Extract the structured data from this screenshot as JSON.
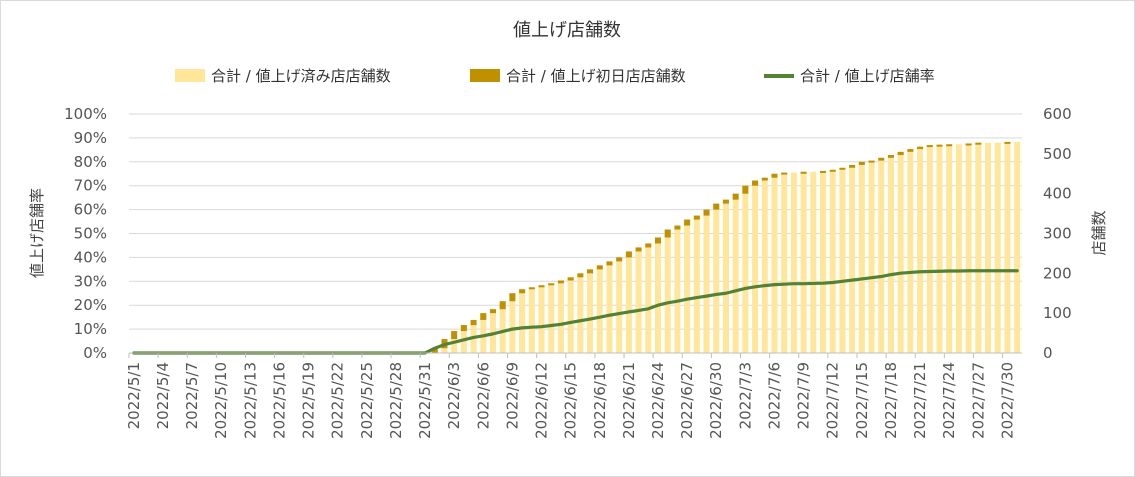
{
  "chart_data": {
    "type": "bar",
    "title": "値上げ店舗数",
    "ylabel_left": "値上げ店舗率",
    "ylabel_right": "店舗数",
    "y_left": {
      "lim": [
        0,
        1
      ],
      "ticks": [
        "0%",
        "10%",
        "20%",
        "30%",
        "40%",
        "50%",
        "60%",
        "70%",
        "80%",
        "90%",
        "100%"
      ]
    },
    "y_right": {
      "lim": [
        0,
        600
      ],
      "ticks": [
        "0",
        "100",
        "200",
        "300",
        "400",
        "500",
        "600"
      ]
    },
    "x_tick_labels": [
      "2022/5/1",
      "2022/5/4",
      "2022/5/7",
      "2022/5/10",
      "2022/5/13",
      "2022/5/16",
      "2022/5/19",
      "2022/5/22",
      "2022/5/25",
      "2022/5/28",
      "2022/5/31",
      "2022/6/3",
      "2022/6/6",
      "2022/6/9",
      "2022/6/12",
      "2022/6/15",
      "2022/6/18",
      "2022/6/21",
      "2022/6/24",
      "2022/6/27",
      "2022/6/30",
      "2022/7/3",
      "2022/7/6",
      "2022/7/9",
      "2022/7/12",
      "2022/7/15",
      "2022/7/18",
      "2022/7/21",
      "2022/7/24",
      "2022/7/27",
      "2022/7/30"
    ],
    "legend_position": "top",
    "grid": true,
    "colors": {
      "cumulative": "#FFE699",
      "first_day": "#BF9000",
      "rate": "#548235"
    },
    "series": [
      {
        "name": "合計 / 値上げ済み店店舗数",
        "axis": "right",
        "style": "bar",
        "points": [
          [
            "2022/5/31",
            0
          ],
          [
            "2022/6/1",
            12
          ],
          [
            "2022/6/2",
            35
          ],
          [
            "2022/6/3",
            55
          ],
          [
            "2022/6/4",
            70
          ],
          [
            "2022/6/5",
            83
          ],
          [
            "2022/6/6",
            100
          ],
          [
            "2022/6/7",
            110
          ],
          [
            "2022/6/8",
            130
          ],
          [
            "2022/6/9",
            150
          ],
          [
            "2022/6/10",
            160
          ],
          [
            "2022/6/11",
            165
          ],
          [
            "2022/6/12",
            170
          ],
          [
            "2022/6/13",
            175
          ],
          [
            "2022/6/14",
            182
          ],
          [
            "2022/6/15",
            190
          ],
          [
            "2022/6/16",
            200
          ],
          [
            "2022/6/17",
            210
          ],
          [
            "2022/6/18",
            220
          ],
          [
            "2022/6/19",
            230
          ],
          [
            "2022/6/20",
            240
          ],
          [
            "2022/6/21",
            255
          ],
          [
            "2022/6/22",
            265
          ],
          [
            "2022/6/23",
            275
          ],
          [
            "2022/6/24",
            290
          ],
          [
            "2022/6/25",
            310
          ],
          [
            "2022/6/26",
            320
          ],
          [
            "2022/6/27",
            335
          ],
          [
            "2022/6/28",
            345
          ],
          [
            "2022/6/29",
            360
          ],
          [
            "2022/6/30",
            375
          ],
          [
            "2022/7/1",
            385
          ],
          [
            "2022/7/2",
            400
          ],
          [
            "2022/7/3",
            420
          ],
          [
            "2022/7/4",
            433
          ],
          [
            "2022/7/5",
            440
          ],
          [
            "2022/7/6",
            450
          ],
          [
            "2022/7/7",
            453
          ],
          [
            "2022/7/8",
            453
          ],
          [
            "2022/7/9",
            455
          ],
          [
            "2022/7/10",
            455
          ],
          [
            "2022/7/11",
            457
          ],
          [
            "2022/7/12",
            460
          ],
          [
            "2022/7/13",
            465
          ],
          [
            "2022/7/14",
            472
          ],
          [
            "2022/7/15",
            480
          ],
          [
            "2022/7/16",
            483
          ],
          [
            "2022/7/17",
            490
          ],
          [
            "2022/7/18",
            497
          ],
          [
            "2022/7/19",
            505
          ],
          [
            "2022/7/20",
            512
          ],
          [
            "2022/7/21",
            518
          ],
          [
            "2022/7/22",
            522
          ],
          [
            "2022/7/23",
            523
          ],
          [
            "2022/7/24",
            524
          ],
          [
            "2022/7/25",
            524
          ],
          [
            "2022/7/26",
            526
          ],
          [
            "2022/7/27",
            528
          ],
          [
            "2022/7/28",
            528
          ],
          [
            "2022/7/29",
            528
          ],
          [
            "2022/7/30",
            530
          ],
          [
            "2022/7/31",
            530
          ]
        ]
      },
      {
        "name": "合計 / 値上げ初日店店舗数",
        "axis": "right",
        "style": "stacked-increment",
        "points": [
          [
            "2022/5/31",
            0
          ],
          [
            "2022/6/1",
            12
          ],
          [
            "2022/6/2",
            23
          ],
          [
            "2022/6/3",
            20
          ],
          [
            "2022/6/4",
            15
          ],
          [
            "2022/6/5",
            13
          ],
          [
            "2022/6/6",
            17
          ],
          [
            "2022/6/7",
            10
          ],
          [
            "2022/6/8",
            20
          ],
          [
            "2022/6/9",
            20
          ],
          [
            "2022/6/10",
            10
          ],
          [
            "2022/6/11",
            5
          ],
          [
            "2022/6/12",
            5
          ],
          [
            "2022/6/13",
            5
          ],
          [
            "2022/6/14",
            7
          ],
          [
            "2022/6/15",
            8
          ],
          [
            "2022/6/16",
            10
          ],
          [
            "2022/6/17",
            10
          ],
          [
            "2022/6/18",
            10
          ],
          [
            "2022/6/19",
            10
          ],
          [
            "2022/6/20",
            10
          ],
          [
            "2022/6/21",
            15
          ],
          [
            "2022/6/22",
            10
          ],
          [
            "2022/6/23",
            10
          ],
          [
            "2022/6/24",
            15
          ],
          [
            "2022/6/25",
            20
          ],
          [
            "2022/6/26",
            10
          ],
          [
            "2022/6/27",
            15
          ],
          [
            "2022/6/28",
            10
          ],
          [
            "2022/6/29",
            15
          ],
          [
            "2022/6/30",
            15
          ],
          [
            "2022/7/1",
            10
          ],
          [
            "2022/7/2",
            15
          ],
          [
            "2022/7/3",
            20
          ],
          [
            "2022/7/4",
            13
          ],
          [
            "2022/7/5",
            7
          ],
          [
            "2022/7/6",
            10
          ],
          [
            "2022/7/7",
            3
          ],
          [
            "2022/7/8",
            0
          ],
          [
            "2022/7/9",
            2
          ],
          [
            "2022/7/10",
            0
          ],
          [
            "2022/7/11",
            2
          ],
          [
            "2022/7/12",
            3
          ],
          [
            "2022/7/13",
            5
          ],
          [
            "2022/7/14",
            7
          ],
          [
            "2022/7/15",
            8
          ],
          [
            "2022/7/16",
            3
          ],
          [
            "2022/7/17",
            7
          ],
          [
            "2022/7/18",
            7
          ],
          [
            "2022/7/19",
            8
          ],
          [
            "2022/7/20",
            7
          ],
          [
            "2022/7/21",
            6
          ],
          [
            "2022/7/22",
            4
          ],
          [
            "2022/7/23",
            1
          ],
          [
            "2022/7/24",
            1
          ],
          [
            "2022/7/25",
            0
          ],
          [
            "2022/7/26",
            2
          ],
          [
            "2022/7/27",
            2
          ],
          [
            "2022/7/28",
            0
          ],
          [
            "2022/7/29",
            0
          ],
          [
            "2022/7/30",
            2
          ],
          [
            "2022/7/31",
            0
          ]
        ]
      },
      {
        "name": "合計 / 値上げ店舗率",
        "axis": "left",
        "style": "line",
        "points": [
          [
            "2022/5/1",
            0
          ],
          [
            "2022/5/31",
            0
          ],
          [
            "2022/6/1",
            0.02
          ],
          [
            "2022/6/2",
            0.035
          ],
          [
            "2022/6/3",
            0.045
          ],
          [
            "2022/6/4",
            0.055
          ],
          [
            "2022/6/5",
            0.065
          ],
          [
            "2022/6/6",
            0.072
          ],
          [
            "2022/6/7",
            0.08
          ],
          [
            "2022/6/8",
            0.09
          ],
          [
            "2022/6/9",
            0.1
          ],
          [
            "2022/6/10",
            0.105
          ],
          [
            "2022/6/11",
            0.108
          ],
          [
            "2022/6/12",
            0.11
          ],
          [
            "2022/6/13",
            0.115
          ],
          [
            "2022/6/14",
            0.12
          ],
          [
            "2022/6/15",
            0.128
          ],
          [
            "2022/6/16",
            0.135
          ],
          [
            "2022/6/17",
            0.142
          ],
          [
            "2022/6/18",
            0.15
          ],
          [
            "2022/6/19",
            0.158
          ],
          [
            "2022/6/20",
            0.165
          ],
          [
            "2022/6/21",
            0.172
          ],
          [
            "2022/6/22",
            0.178
          ],
          [
            "2022/6/23",
            0.185
          ],
          [
            "2022/6/24",
            0.2
          ],
          [
            "2022/6/25",
            0.21
          ],
          [
            "2022/6/26",
            0.217
          ],
          [
            "2022/6/27",
            0.225
          ],
          [
            "2022/6/28",
            0.232
          ],
          [
            "2022/6/29",
            0.238
          ],
          [
            "2022/6/30",
            0.245
          ],
          [
            "2022/7/1",
            0.25
          ],
          [
            "2022/7/2",
            0.26
          ],
          [
            "2022/7/3",
            0.27
          ],
          [
            "2022/7/4",
            0.277
          ],
          [
            "2022/7/5",
            0.282
          ],
          [
            "2022/7/6",
            0.286
          ],
          [
            "2022/7/7",
            0.288
          ],
          [
            "2022/7/8",
            0.29
          ],
          [
            "2022/7/9",
            0.29
          ],
          [
            "2022/7/10",
            0.291
          ],
          [
            "2022/7/11",
            0.292
          ],
          [
            "2022/7/12",
            0.295
          ],
          [
            "2022/7/13",
            0.3
          ],
          [
            "2022/7/14",
            0.305
          ],
          [
            "2022/7/15",
            0.31
          ],
          [
            "2022/7/16",
            0.315
          ],
          [
            "2022/7/17",
            0.32
          ],
          [
            "2022/7/18",
            0.328
          ],
          [
            "2022/7/19",
            0.334
          ],
          [
            "2022/7/20",
            0.337
          ],
          [
            "2022/7/21",
            0.34
          ],
          [
            "2022/7/22",
            0.341
          ],
          [
            "2022/7/23",
            0.342
          ],
          [
            "2022/7/24",
            0.343
          ],
          [
            "2022/7/25",
            0.343
          ],
          [
            "2022/7/26",
            0.344
          ],
          [
            "2022/7/27",
            0.344
          ],
          [
            "2022/7/28",
            0.344
          ],
          [
            "2022/7/29",
            0.344
          ],
          [
            "2022/7/30",
            0.344
          ],
          [
            "2022/7/31",
            0.344
          ]
        ]
      }
    ]
  }
}
